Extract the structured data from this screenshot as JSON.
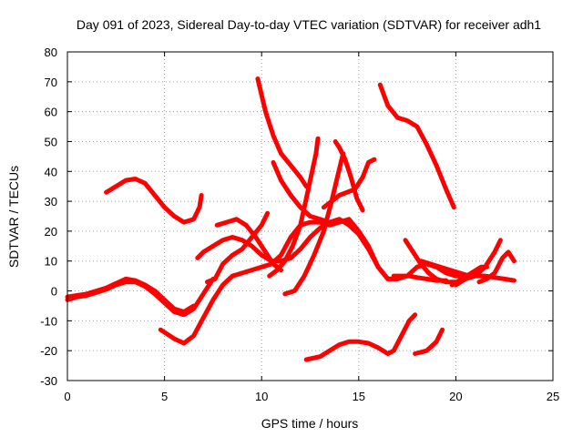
{
  "chart_data": {
    "type": "line",
    "title": "Day 091 of 2023, Sidereal Day-to-day VTEC variation (SDTVAR) for receiver adh1",
    "xlabel": "GPS time / hours",
    "ylabel": "SDTVAR / TECUs",
    "xlim": [
      0,
      25
    ],
    "ylim": [
      -30,
      80
    ],
    "xticks": [
      0,
      5,
      10,
      15,
      20,
      25
    ],
    "yticks": [
      -30,
      -20,
      -10,
      0,
      10,
      20,
      30,
      40,
      50,
      60,
      70,
      80
    ],
    "grid": true,
    "line_color": "#ff0000",
    "grid_color": "#a0a0a0",
    "series": [
      {
        "name": "s1",
        "points": [
          [
            0,
            -3
          ],
          [
            0.5,
            -2
          ],
          [
            1,
            -1.5
          ],
          [
            1.5,
            -0.5
          ],
          [
            2,
            0.5
          ],
          [
            2.5,
            2
          ],
          [
            3,
            3
          ],
          [
            3.5,
            3
          ],
          [
            4,
            1.5
          ],
          [
            4.5,
            -1
          ],
          [
            5,
            -4
          ],
          [
            5.5,
            -7
          ],
          [
            6,
            -8
          ],
          [
            6.5,
            -6
          ],
          [
            7,
            -1
          ],
          [
            7.5,
            4
          ]
        ]
      },
      {
        "name": "s2",
        "points": [
          [
            0,
            -2
          ],
          [
            0.5,
            -1.5
          ],
          [
            1,
            -1
          ],
          [
            1.5,
            0
          ],
          [
            2,
            1
          ],
          [
            2.5,
            2.5
          ],
          [
            3,
            4
          ],
          [
            3.5,
            3.5
          ],
          [
            4,
            2
          ],
          [
            4.5,
            0
          ],
          [
            5,
            -3
          ],
          [
            5.5,
            -6
          ],
          [
            6,
            -7
          ],
          [
            6.5,
            -5
          ]
        ]
      },
      {
        "name": "s3",
        "points": [
          [
            2,
            33
          ],
          [
            2.5,
            35
          ],
          [
            3,
            37
          ],
          [
            3.5,
            37.5
          ],
          [
            4,
            36
          ],
          [
            4.5,
            32
          ],
          [
            5,
            28
          ],
          [
            5.5,
            25
          ],
          [
            6,
            23
          ],
          [
            6.5,
            24
          ],
          [
            6.8,
            28
          ],
          [
            6.9,
            32
          ]
        ]
      },
      {
        "name": "s4",
        "points": [
          [
            4.8,
            -13
          ],
          [
            5.5,
            -16
          ],
          [
            6,
            -17.5
          ],
          [
            6.5,
            -15
          ],
          [
            7,
            -9
          ],
          [
            7.5,
            -3
          ],
          [
            8,
            2
          ],
          [
            8.5,
            5
          ],
          [
            9,
            6
          ],
          [
            9.5,
            7
          ],
          [
            10,
            8
          ],
          [
            10.5,
            9
          ],
          [
            11,
            12
          ],
          [
            11.5,
            18
          ],
          [
            12,
            22
          ],
          [
            12.5,
            23
          ],
          [
            13,
            23
          ],
          [
            13.5,
            22
          ],
          [
            14,
            23
          ],
          [
            14.5,
            24
          ],
          [
            15,
            20
          ],
          [
            15.5,
            15
          ],
          [
            16,
            8
          ],
          [
            16.5,
            4
          ],
          [
            17,
            4
          ],
          [
            17.5,
            5
          ],
          [
            18,
            8
          ],
          [
            18.5,
            9
          ],
          [
            19,
            8
          ],
          [
            19.5,
            6
          ],
          [
            20,
            5
          ],
          [
            20.5,
            5
          ],
          [
            21,
            6
          ]
        ]
      },
      {
        "name": "s5",
        "points": [
          [
            6.7,
            11
          ],
          [
            7,
            13
          ],
          [
            7.5,
            15
          ],
          [
            8,
            17
          ],
          [
            8.5,
            18
          ],
          [
            9,
            17
          ],
          [
            9.5,
            15
          ],
          [
            10,
            12
          ],
          [
            10.5,
            10
          ],
          [
            11,
            10
          ],
          [
            11.5,
            11
          ],
          [
            12,
            14
          ],
          [
            12.5,
            18
          ],
          [
            13,
            21
          ],
          [
            13.5,
            23
          ],
          [
            14,
            24
          ],
          [
            14.5,
            22
          ],
          [
            15,
            19
          ],
          [
            15.5,
            14
          ],
          [
            16,
            8
          ],
          [
            16.5,
            4
          ],
          [
            17,
            4
          ]
        ]
      },
      {
        "name": "s6",
        "points": [
          [
            7.2,
            3
          ],
          [
            7.6,
            4
          ],
          [
            8,
            9
          ],
          [
            8.5,
            12
          ],
          [
            9,
            14
          ],
          [
            9.5,
            18
          ],
          [
            10,
            22
          ],
          [
            10.3,
            26
          ]
        ]
      },
      {
        "name": "s7",
        "points": [
          [
            7.7,
            22
          ],
          [
            8.2,
            23
          ],
          [
            8.7,
            24
          ],
          [
            9.2,
            22
          ],
          [
            9.7,
            18
          ],
          [
            10.2,
            13
          ],
          [
            10.6,
            9
          ],
          [
            11,
            7
          ]
        ]
      },
      {
        "name": "s8",
        "points": [
          [
            9.8,
            71
          ],
          [
            10.2,
            60
          ],
          [
            10.6,
            52
          ],
          [
            11,
            46
          ],
          [
            11.5,
            42
          ],
          [
            12,
            38
          ],
          [
            12.3,
            35
          ]
        ]
      },
      {
        "name": "s9",
        "points": [
          [
            10.4,
            5
          ],
          [
            10.8,
            7
          ],
          [
            11.2,
            10
          ],
          [
            11.6,
            15
          ],
          [
            12,
            22
          ],
          [
            12.4,
            34
          ],
          [
            12.8,
            46
          ],
          [
            12.9,
            51
          ]
        ]
      },
      {
        "name": "s10",
        "points": [
          [
            10.6,
            43
          ],
          [
            11,
            37
          ],
          [
            11.5,
            32
          ],
          [
            12,
            28
          ],
          [
            12.5,
            25
          ],
          [
            13,
            24
          ],
          [
            13.5,
            23
          ],
          [
            14,
            23.5
          ]
        ]
      },
      {
        "name": "s11",
        "points": [
          [
            11.2,
            -1
          ],
          [
            11.7,
            0
          ],
          [
            12.2,
            5
          ],
          [
            12.7,
            12
          ],
          [
            13.2,
            20
          ],
          [
            13.6,
            30
          ],
          [
            13.9,
            38
          ],
          [
            14.2,
            46
          ]
        ]
      },
      {
        "name": "s12",
        "points": [
          [
            13.8,
            50
          ],
          [
            14,
            48
          ],
          [
            14.3,
            44
          ],
          [
            14.6,
            38
          ],
          [
            14.9,
            31
          ],
          [
            15.2,
            27
          ]
        ]
      },
      {
        "name": "s13",
        "points": [
          [
            13.2,
            28
          ],
          [
            13.6,
            30
          ],
          [
            14,
            32
          ],
          [
            14.4,
            33
          ],
          [
            14.8,
            34
          ],
          [
            15.2,
            38
          ],
          [
            15.5,
            43
          ],
          [
            15.8,
            44
          ]
        ]
      },
      {
        "name": "s14",
        "points": [
          [
            12.3,
            -23
          ],
          [
            13,
            -22
          ],
          [
            13.5,
            -20
          ],
          [
            14,
            -18
          ],
          [
            14.5,
            -17
          ],
          [
            15,
            -17
          ],
          [
            15.5,
            -17.5
          ],
          [
            16,
            -19
          ],
          [
            16.5,
            -21
          ],
          [
            16.8,
            -20
          ],
          [
            17.2,
            -15
          ],
          [
            17.6,
            -10
          ],
          [
            17.9,
            -8
          ]
        ]
      },
      {
        "name": "s15",
        "points": [
          [
            16.1,
            69
          ],
          [
            16.5,
            62
          ],
          [
            17,
            58
          ],
          [
            17.5,
            57
          ],
          [
            18,
            55
          ],
          [
            18.5,
            49
          ],
          [
            19,
            42
          ],
          [
            19.5,
            34
          ],
          [
            19.9,
            28
          ]
        ]
      },
      {
        "name": "s16",
        "points": [
          [
            17.4,
            17
          ],
          [
            17.8,
            13
          ],
          [
            18.2,
            9
          ],
          [
            18.6,
            6
          ],
          [
            19,
            4
          ],
          [
            19.5,
            3
          ],
          [
            20,
            3
          ]
        ]
      },
      {
        "name": "s17",
        "points": [
          [
            16.8,
            5
          ],
          [
            17.2,
            5
          ],
          [
            17.6,
            5
          ],
          [
            18,
            4.5
          ],
          [
            18.5,
            4
          ],
          [
            19,
            3.5
          ],
          [
            19.5,
            3.5
          ]
        ]
      },
      {
        "name": "s18",
        "points": [
          [
            17.9,
            -21
          ],
          [
            18.5,
            -20
          ],
          [
            19,
            -17
          ],
          [
            19.3,
            -13
          ]
        ]
      },
      {
        "name": "s19",
        "points": [
          [
            18.2,
            10
          ],
          [
            18.7,
            9
          ],
          [
            19.2,
            8
          ],
          [
            19.7,
            7
          ],
          [
            20.2,
            6
          ],
          [
            20.7,
            5
          ],
          [
            21,
            5
          ],
          [
            21.5,
            5
          ],
          [
            22,
            4.5
          ],
          [
            22.5,
            4
          ],
          [
            23,
            3.5
          ]
        ]
      },
      {
        "name": "s20",
        "points": [
          [
            20,
            2
          ],
          [
            20.5,
            4
          ],
          [
            21,
            5
          ],
          [
            21.5,
            8
          ],
          [
            22,
            13
          ],
          [
            22.3,
            17
          ]
        ]
      },
      {
        "name": "s21",
        "points": [
          [
            21.2,
            3
          ],
          [
            21.6,
            4
          ],
          [
            22,
            6
          ],
          [
            22.4,
            11
          ],
          [
            22.7,
            13
          ],
          [
            23,
            10
          ]
        ]
      },
      {
        "name": "s22",
        "points": [
          [
            19.8,
            2
          ],
          [
            20.3,
            4
          ],
          [
            20.8,
            6
          ],
          [
            21.3,
            8
          ],
          [
            21.6,
            8
          ]
        ]
      }
    ]
  }
}
